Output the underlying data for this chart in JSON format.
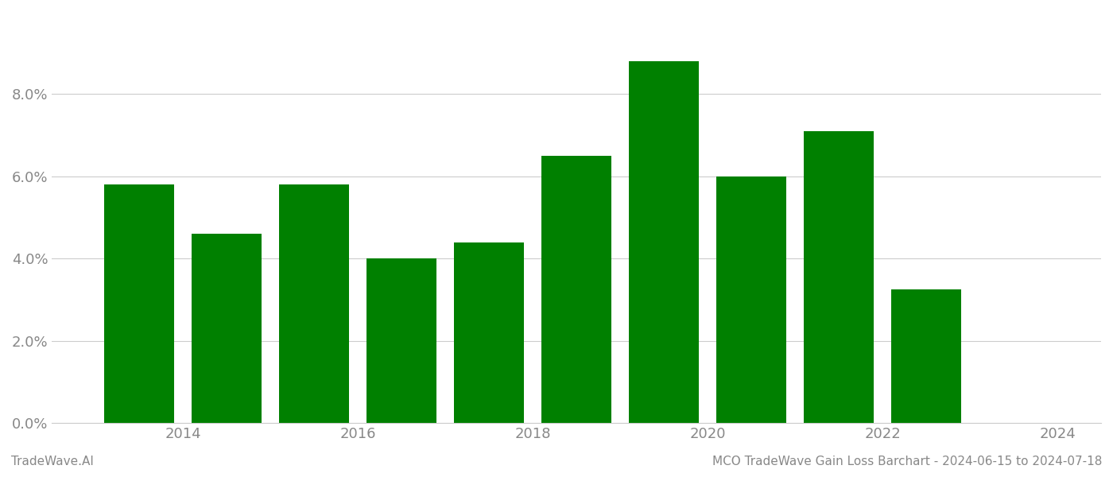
{
  "bar_positions": [
    2013.5,
    2014.5,
    2015.5,
    2016.5,
    2017.5,
    2018.5,
    2019.5,
    2020.5,
    2021.5,
    2022.5
  ],
  "values": [
    0.058,
    0.046,
    0.058,
    0.04,
    0.044,
    0.065,
    0.088,
    0.06,
    0.071,
    0.0325
  ],
  "bar_color": "#008000",
  "background_color": "#ffffff",
  "footer_left": "TradeWave.AI",
  "footer_right": "MCO TradeWave Gain Loss Barchart - 2024-06-15 to 2024-07-18",
  "ylim": [
    0,
    0.1
  ],
  "ytick_values": [
    0.0,
    0.02,
    0.04,
    0.06,
    0.08
  ],
  "xtick_values": [
    2014,
    2016,
    2018,
    2020,
    2022,
    2024
  ],
  "xlim": [
    2012.5,
    2024.5
  ],
  "bar_width": 0.8,
  "grid_color": "#cccccc",
  "footer_fontsize": 11,
  "axis_label_color": "#888888",
  "tick_fontsize": 13
}
